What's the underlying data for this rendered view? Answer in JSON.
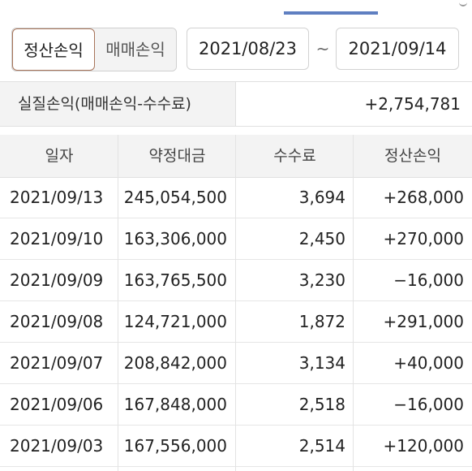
{
  "toggle": {
    "settlement_label": "정산손익",
    "trading_label": "매매손익"
  },
  "period": {
    "start": "2021/08/23",
    "separator": "~",
    "end": "2021/09/14"
  },
  "summary": {
    "label": "실질손익(매매손익-수수료)",
    "value": "+2,754,781"
  },
  "table": {
    "headers": [
      "일자",
      "약정대금",
      "수수료",
      "정산손익"
    ],
    "rows": [
      {
        "date": "2021/09/13",
        "amount": "245,054,500",
        "fee": "3,694",
        "pl": "+268,000"
      },
      {
        "date": "2021/09/10",
        "amount": "163,306,000",
        "fee": "2,450",
        "pl": "+270,000"
      },
      {
        "date": "2021/09/09",
        "amount": "163,765,500",
        "fee": "3,230",
        "pl": "−16,000"
      },
      {
        "date": "2021/09/08",
        "amount": "124,721,000",
        "fee": "1,872",
        "pl": "+291,000"
      },
      {
        "date": "2021/09/07",
        "amount": "208,842,000",
        "fee": "3,134",
        "pl": "+40,000"
      },
      {
        "date": "2021/09/06",
        "amount": "167,848,000",
        "fee": "2,518",
        "pl": "−16,000"
      },
      {
        "date": "2021/09/03",
        "amount": "167,556,000",
        "fee": "2,514",
        "pl": "+120,000"
      }
    ]
  },
  "colors": {
    "tab_indicator": "#5f7fc1",
    "active_border": "#a7745a",
    "header_bg": "#f3f3f3"
  }
}
